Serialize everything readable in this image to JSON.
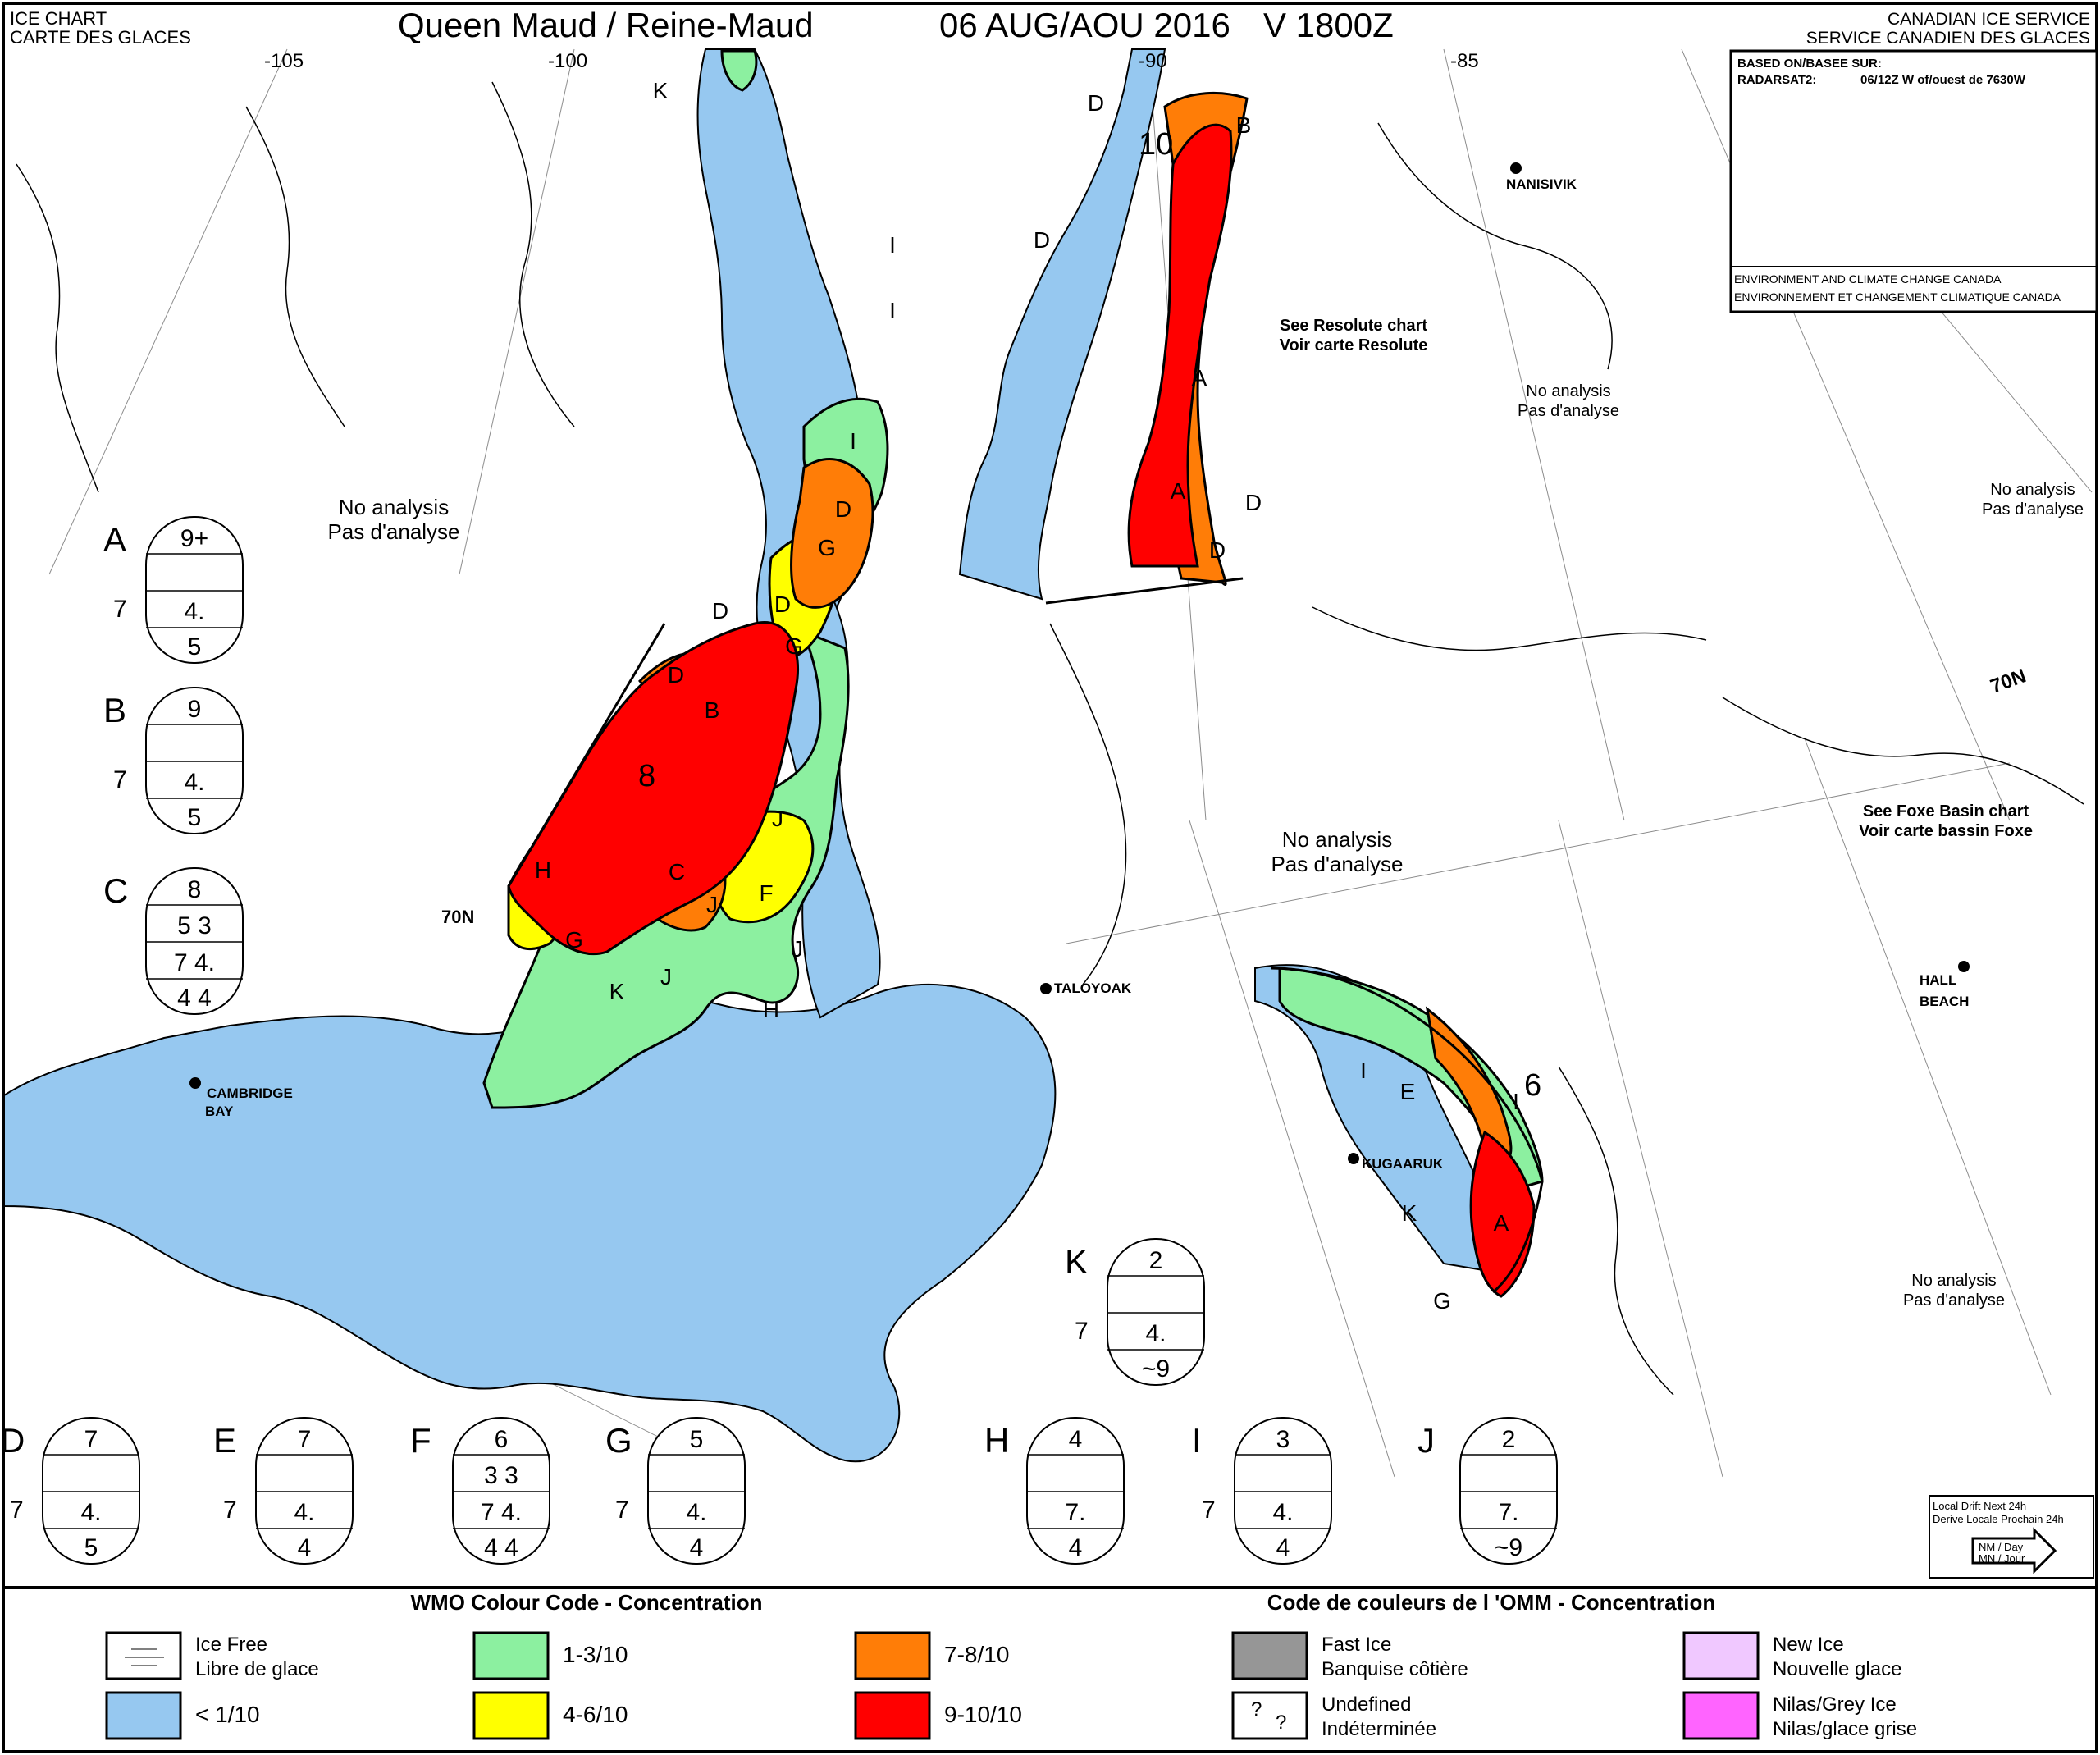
{
  "header": {
    "chart_label_en": "ICE CHART",
    "chart_label_fr": "CARTE DES GLACES",
    "region": "Queen Maud / Reine-Maud",
    "date": "06 AUG/AOU 2016",
    "validity": "V 1800Z",
    "service_en": "CANADIAN ICE SERVICE",
    "service_fr": "SERVICE CANADIEN DES GLACES"
  },
  "source_box": {
    "based_on": "BASED ON/BASEE SUR:",
    "sensor": "RADARSAT2:",
    "detail": "06/12Z W of/ouest de 7630W",
    "agency_en": "ENVIRONMENT AND CLIMATE CHANGE CANADA",
    "agency_fr": "ENVIRONNEMENT ET CHANGEMENT CLIMATIQUE CANADA"
  },
  "longitudes": [
    "-105",
    "-100",
    "-90",
    "-85"
  ],
  "latitude_labels": [
    "70N",
    "70N"
  ],
  "places": [
    "NANISIVIK",
    "TALOYOAK",
    "CAMBRIDGE",
    "BAY",
    "KUGAARUK",
    "HALL",
    "BEACH"
  ],
  "notes": {
    "no_analysis_en": "No analysis",
    "no_analysis_fr": "Pas d'analyse",
    "resolute_en": "See Resolute chart",
    "resolute_fr": "Voir carte Resolute",
    "foxe_en": "See Foxe Basin chart",
    "foxe_fr": "Voir carte bassin Foxe"
  },
  "drift_numbers": [
    "10",
    "8",
    "6"
  ],
  "region_letters": [
    "A",
    "A",
    "A",
    "B",
    "B",
    "C",
    "D",
    "D",
    "D",
    "D",
    "D",
    "D",
    "D",
    "D",
    "E",
    "F",
    "G",
    "G",
    "G",
    "G",
    "H",
    "H",
    "I",
    "I",
    "I",
    "I",
    "I",
    "J",
    "J",
    "J",
    "J",
    "K",
    "K",
    "K"
  ],
  "egg_codes": [
    {
      "letter": "A",
      "total": "9+",
      "partial": "",
      "stage_left": "7",
      "stage": "4.",
      "floe": "5"
    },
    {
      "letter": "B",
      "total": "9",
      "partial": "",
      "stage_left": "7",
      "stage": "4.",
      "floe": "5"
    },
    {
      "letter": "C",
      "total": "8",
      "partial": "5  3",
      "stage_left": "",
      "stage": "7  4.",
      "floe": "4  4"
    },
    {
      "letter": "K",
      "total": "2",
      "partial": "",
      "stage_left": "7",
      "stage": "4.",
      "floe": "~9"
    },
    {
      "letter": "D",
      "total": "7",
      "partial": "",
      "stage_left": "7",
      "stage": "4.",
      "floe": "5"
    },
    {
      "letter": "E",
      "total": "7",
      "partial": "",
      "stage_left": "7",
      "stage": "4.",
      "floe": "4"
    },
    {
      "letter": "F",
      "total": "6",
      "partial": "3  3",
      "stage_left": "",
      "stage": "7  4.",
      "floe": "4  4"
    },
    {
      "letter": "G",
      "total": "5",
      "partial": "",
      "stage_left": "7",
      "stage": "4.",
      "floe": "4"
    },
    {
      "letter": "H",
      "total": "4",
      "partial": "",
      "stage_left": "",
      "stage": "7.",
      "floe": "4"
    },
    {
      "letter": "I",
      "total": "3",
      "partial": "",
      "stage_left": "7",
      "stage": "4.",
      "floe": "4"
    },
    {
      "letter": "J",
      "total": "2",
      "partial": "",
      "stage_left": "",
      "stage": "7.",
      "floe": "~9"
    }
  ],
  "drift_box": {
    "line1": "Local Drift Next 24h",
    "line2": "Derive Locale Prochain 24h",
    "unit_top": "NM / Day",
    "unit_bottom": "MN / Jour"
  },
  "legend": {
    "title_en": "WMO Colour Code - Concentration",
    "title_fr": "Code de couleurs de l 'OMM - Concentration",
    "items": [
      {
        "color": "#ffffff",
        "line1": "Ice Free",
        "line2": "Libre de glace"
      },
      {
        "color": "#96c8f0",
        "line1": "< 1/10",
        "line2": ""
      },
      {
        "color": "#8cf0a0",
        "line1": "1-3/10",
        "line2": ""
      },
      {
        "color": "#ffff00",
        "line1": "4-6/10",
        "line2": ""
      },
      {
        "color": "#ff7d07",
        "line1": "7-8/10",
        "line2": ""
      },
      {
        "color": "#ff0000",
        "line1": "9-10/10",
        "line2": ""
      },
      {
        "color": "#969696",
        "line1": "Fast Ice",
        "line2": "Banquise côtière"
      },
      {
        "color": "#ffffff",
        "line1": "Undefined",
        "line2": "Indéterminée"
      },
      {
        "color": "#f0c8ff",
        "line1": "New Ice",
        "line2": "Nouvelle glace"
      },
      {
        "color": "#ff64ff",
        "line1": "Nilas/Grey Ice",
        "line2": "Nilas/glace grise"
      }
    ]
  },
  "colors": {
    "open_water": "#96c8f0",
    "very_open": "#8cf0a0",
    "open_drift": "#ffff00",
    "close_pack": "#ff7d07",
    "very_close": "#ff0000"
  }
}
